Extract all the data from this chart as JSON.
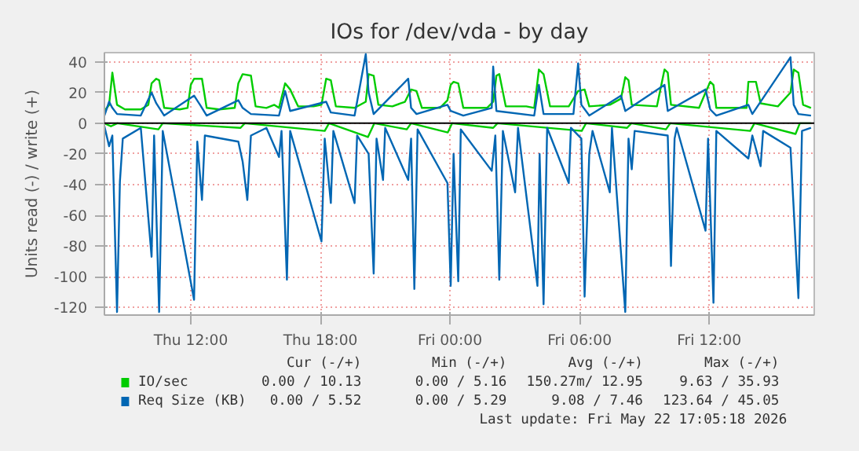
{
  "chart_data": {
    "type": "line",
    "title": "IOs for /dev/vda - by day",
    "ylabel": "Units read (-) / write (+)",
    "xlim": [
      "2026-05-21T08:00",
      "2026-05-22T16:52"
    ],
    "ylim": [
      -125,
      46
    ],
    "xticks": [
      {
        "value": "2026-05-21T12:00",
        "label": "Thu 12:00"
      },
      {
        "value": "2026-05-21T18:00",
        "label": "Thu 18:00"
      },
      {
        "value": "2026-05-22T00:00",
        "label": "Fri 00:00"
      },
      {
        "value": "2026-05-22T06:00",
        "label": "Fri 06:00"
      },
      {
        "value": "2026-05-22T12:00",
        "label": "Fri 12:00"
      }
    ],
    "yticks": [
      -120,
      -100,
      -80,
      -60,
      -40,
      -20,
      0,
      20,
      40
    ],
    "grid": true,
    "legend": "bottom",
    "ref_lines": [
      {
        "axis": "y",
        "value": 0,
        "color": "#000000"
      }
    ],
    "annotations": [
      "Cur (-/+)",
      "Min (-/+)",
      "Avg (-/+)",
      "Max (-/+)",
      "0.00 / 10.13",
      "0.00 / 5.16",
      "150.27m/ 12.95",
      "9.63 / 35.93",
      "0.00 / 5.52",
      "0.00 / 5.29",
      "9.08 / 7.46",
      "123.64 / 45.05",
      "Last update: Fri May 22 17:05:18 2026"
    ],
    "series": [
      {
        "name": "IO/sec",
        "color": "#00cc00",
        "x": [
          "2026-05-21T08:00",
          "2026-05-21T08:13",
          "2026-05-21T08:22",
          "2026-05-21T08:35",
          "2026-05-21T08:57",
          "2026-05-21T09:41",
          "2026-05-21T10:02",
          "2026-05-21T10:11",
          "2026-05-21T10:24",
          "2026-05-21T10:32",
          "2026-05-21T10:46",
          "2026-05-21T11:29",
          "2026-05-21T11:51",
          "2026-05-21T12:00",
          "2026-05-21T12:09",
          "2026-05-21T12:31",
          "2026-05-21T12:44",
          "2026-05-21T13:19",
          "2026-05-21T14:02",
          "2026-05-21T14:12",
          "2026-05-21T14:24",
          "2026-05-21T14:47",
          "2026-05-21T15:00",
          "2026-05-21T15:30",
          "2026-05-21T15:52",
          "2026-05-21T16:05",
          "2026-05-21T16:22",
          "2026-05-21T16:36",
          "2026-05-21T16:58",
          "2026-05-21T17:41",
          "2026-05-21T18:03",
          "2026-05-21T18:16",
          "2026-05-21T18:29",
          "2026-05-21T18:43",
          "2026-05-21T19:35",
          "2026-05-21T20:06",
          "2026-05-21T20:14",
          "2026-05-21T20:28",
          "2026-05-21T20:41",
          "2026-05-21T21:20",
          "2026-05-21T21:55",
          "2026-05-21T22:12",
          "2026-05-21T22:27",
          "2026-05-21T22:42",
          "2026-05-21T23:32",
          "2026-05-21T23:53",
          "2026-05-22T00:02",
          "2026-05-22T00:10",
          "2026-05-22T00:23",
          "2026-05-22T00:37",
          "2026-05-22T01:43",
          "2026-05-22T02:00",
          "2026-05-22T02:09",
          "2026-05-22T02:17",
          "2026-05-22T02:35",
          "2026-05-22T03:32",
          "2026-05-22T03:54",
          "2026-05-22T04:03",
          "2026-05-22T04:07",
          "2026-05-22T04:20",
          "2026-05-22T04:38",
          "2026-05-22T05:30",
          "2026-05-22T05:56",
          "2026-05-22T06:14",
          "2026-05-22T06:27",
          "2026-05-22T07:24",
          "2026-05-22T07:55",
          "2026-05-22T08:07",
          "2026-05-22T08:16",
          "2026-05-22T08:25",
          "2026-05-22T09:35",
          "2026-05-22T09:56",
          "2026-05-22T10:05",
          "2026-05-22T10:14",
          "2026-05-22T11:32",
          "2026-05-22T11:50",
          "2026-05-22T12:03",
          "2026-05-22T12:12",
          "2026-05-22T12:20",
          "2026-05-22T13:44",
          "2026-05-22T13:49",
          "2026-05-22T14:10",
          "2026-05-22T14:23",
          "2026-05-22T15:11",
          "2026-05-22T15:46",
          "2026-05-22T15:55",
          "2026-05-22T16:08",
          "2026-05-22T16:21",
          "2026-05-22T16:43"
        ],
        "values": [
          8,
          12,
          33,
          12,
          9,
          9,
          12,
          26,
          29,
          28,
          10,
          9,
          10,
          25,
          29,
          29,
          10,
          9,
          10,
          26,
          32,
          31,
          11,
          10,
          12,
          10,
          26,
          22,
          11,
          11,
          12,
          29,
          28,
          11,
          10,
          14,
          32,
          31,
          12,
          11,
          14,
          22,
          21,
          10,
          10,
          15,
          25,
          27,
          26,
          10,
          10,
          14,
          31,
          32,
          11,
          11,
          10,
          27,
          35,
          32,
          11,
          11,
          21,
          22,
          11,
          12,
          16,
          30,
          28,
          12,
          11,
          35,
          33,
          12,
          10,
          20,
          27,
          25,
          10,
          10,
          27,
          27,
          13,
          11,
          20,
          35,
          33,
          12,
          10
        ]
      },
      {
        "color": "#00cc00",
        "x": [
          "2026-05-21T08:00",
          "2026-05-21T08:18",
          "2026-05-21T08:36",
          "2026-05-21T10:30",
          "2026-05-21T10:42",
          "2026-05-21T14:18",
          "2026-05-21T14:30",
          "2026-05-21T18:12",
          "2026-05-21T18:24",
          "2026-05-21T20:00",
          "2026-05-21T20:12",
          "2026-05-21T20:30",
          "2026-05-21T22:00",
          "2026-05-21T22:12",
          "2026-05-21T23:54",
          "2026-05-22T00:06",
          "2026-05-22T02:00",
          "2026-05-22T02:12",
          "2026-05-22T06:06",
          "2026-05-22T06:18",
          "2026-05-22T08:12",
          "2026-05-22T08:24",
          "2026-05-22T10:00",
          "2026-05-22T10:12",
          "2026-05-22T13:54",
          "2026-05-22T14:06",
          "2026-05-22T16:00",
          "2026-05-22T16:12",
          "2026-05-22T16:43"
        ],
        "values": [
          0,
          -2,
          0,
          -4,
          0,
          -3,
          0,
          -5,
          0,
          -8,
          -9,
          0,
          -4,
          0,
          -6,
          0,
          -3,
          0,
          -5,
          0,
          -3,
          0,
          -4,
          0,
          -5,
          0,
          -7,
          0,
          0
        ]
      },
      {
        "name": "Req Size (KB)",
        "color": "#0066b3",
        "x": [
          "2026-05-21T08:00",
          "2026-05-21T08:13",
          "2026-05-21T08:22",
          "2026-05-21T08:35",
          "2026-05-21T09:41",
          "2026-05-21T10:11",
          "2026-05-21T10:24",
          "2026-05-21T10:46",
          "2026-05-21T12:09",
          "2026-05-21T12:31",
          "2026-05-21T12:44",
          "2026-05-21T14:12",
          "2026-05-21T14:24",
          "2026-05-21T14:47",
          "2026-05-21T16:05",
          "2026-05-21T16:22",
          "2026-05-21T16:36",
          "2026-05-21T18:16",
          "2026-05-21T18:29",
          "2026-05-21T19:35",
          "2026-05-21T20:06",
          "2026-05-21T20:14",
          "2026-05-21T20:28",
          "2026-05-21T22:04",
          "2026-05-21T22:12",
          "2026-05-21T22:27",
          "2026-05-21T23:53",
          "2026-05-22T00:02",
          "2026-05-22T00:37",
          "2026-05-22T01:56",
          "2026-05-22T02:00",
          "2026-05-22T02:09",
          "2026-05-22T03:54",
          "2026-05-22T04:07",
          "2026-05-22T04:20",
          "2026-05-22T05:43",
          "2026-05-22T05:56",
          "2026-05-22T06:05",
          "2026-05-22T06:27",
          "2026-05-22T07:55",
          "2026-05-22T08:07",
          "2026-05-22T09:56",
          "2026-05-22T10:05",
          "2026-05-22T11:50",
          "2026-05-22T12:03",
          "2026-05-22T12:20",
          "2026-05-22T13:49",
          "2026-05-22T14:00",
          "2026-05-22T15:46",
          "2026-05-22T15:55",
          "2026-05-22T16:08",
          "2026-05-22T16:43"
        ],
        "values": [
          5,
          14,
          10,
          6,
          5,
          20,
          13,
          5,
          18,
          10,
          5,
          15,
          10,
          6,
          5,
          21,
          8,
          14,
          7,
          5,
          45,
          20,
          6,
          29,
          10,
          6,
          12,
          8,
          5,
          10,
          37,
          8,
          5,
          25,
          6,
          6,
          39,
          12,
          5,
          18,
          8,
          25,
          8,
          22,
          9,
          5,
          12,
          6,
          43,
          12,
          6,
          5
        ]
      },
      {
        "color": "#0066b3",
        "x": [
          "2026-05-21T08:00",
          "2026-05-21T08:13",
          "2026-05-21T08:22",
          "2026-05-21T08:35",
          "2026-05-21T08:43",
          "2026-05-21T08:51",
          "2026-05-21T09:41",
          "2026-05-21T10:11",
          "2026-05-21T10:18",
          "2026-05-21T10:32",
          "2026-05-21T10:42",
          "2026-05-21T12:09",
          "2026-05-21T12:18",
          "2026-05-21T12:31",
          "2026-05-21T12:39",
          "2026-05-21T14:12",
          "2026-05-21T14:24",
          "2026-05-21T14:37",
          "2026-05-21T14:47",
          "2026-05-21T15:30",
          "2026-05-21T16:05",
          "2026-05-21T16:12",
          "2026-05-21T16:27",
          "2026-05-21T16:36",
          "2026-05-21T18:03",
          "2026-05-21T18:12",
          "2026-05-21T18:29",
          "2026-05-21T18:36",
          "2026-05-21T19:35",
          "2026-05-21T19:42",
          "2026-05-21T20:14",
          "2026-05-21T20:28",
          "2026-05-21T20:36",
          "2026-05-21T20:54",
          "2026-05-21T21:00",
          "2026-05-21T22:04",
          "2026-05-21T22:12",
          "2026-05-21T22:21",
          "2026-05-21T22:30",
          "2026-05-21T23:53",
          "2026-05-22T00:02",
          "2026-05-22T00:10",
          "2026-05-22T00:23",
          "2026-05-22T00:30",
          "2026-05-22T01:56",
          "2026-05-22T02:06",
          "2026-05-22T02:17",
          "2026-05-22T02:27",
          "2026-05-22T03:01",
          "2026-05-22T03:09",
          "2026-05-22T04:03",
          "2026-05-22T04:09",
          "2026-05-22T04:20",
          "2026-05-22T04:30",
          "2026-05-22T05:30",
          "2026-05-22T05:36",
          "2026-05-22T06:05",
          "2026-05-22T06:14",
          "2026-05-22T06:27",
          "2026-05-22T06:36",
          "2026-05-22T07:24",
          "2026-05-22T07:30",
          "2026-05-22T08:07",
          "2026-05-22T08:16",
          "2026-05-22T08:25",
          "2026-05-22T08:33",
          "2026-05-22T10:05",
          "2026-05-22T10:14",
          "2026-05-22T10:24",
          "2026-05-22T10:30",
          "2026-05-22T11:50",
          "2026-05-22T11:57",
          "2026-05-22T12:12",
          "2026-05-22T12:20",
          "2026-05-22T13:49",
          "2026-05-22T14:00",
          "2026-05-22T14:23",
          "2026-05-22T14:30",
          "2026-05-22T15:46",
          "2026-05-22T16:08",
          "2026-05-22T16:18",
          "2026-05-22T16:43"
        ],
        "values": [
          -2,
          -15,
          -8,
          -123,
          -38,
          -10,
          -3,
          -87,
          -8,
          -123,
          -5,
          -115,
          -12,
          -50,
          -8,
          -12,
          -25,
          -50,
          -8,
          -3,
          -22,
          -5,
          -102,
          -5,
          -77,
          -10,
          -52,
          -5,
          -52,
          -8,
          -20,
          -98,
          -10,
          -37,
          -3,
          -37,
          -10,
          -108,
          -4,
          -39,
          -106,
          -20,
          -103,
          -4,
          -31,
          -8,
          -102,
          -5,
          -45,
          -3,
          -106,
          -20,
          -118,
          -3,
          -39,
          -3,
          -10,
          -113,
          -20,
          -5,
          -45,
          -3,
          -123,
          -10,
          -30,
          -5,
          -8,
          -93,
          -10,
          -3,
          -70,
          -10,
          -117,
          -5,
          -23,
          -8,
          -28,
          -5,
          -16,
          -114,
          -5,
          -3
        ]
      }
    ]
  }
}
